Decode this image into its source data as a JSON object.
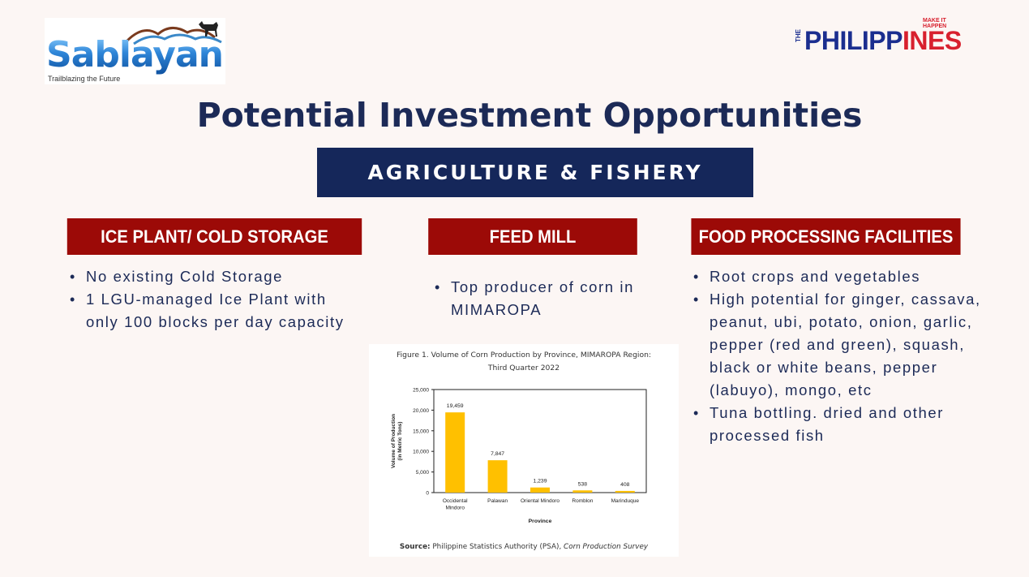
{
  "brand": {
    "logo_name": "Sablayan",
    "logo_tagline": "Trailblazing the Future",
    "ph_the": "THE",
    "ph_word_prefix": "PHILIPP",
    "ph_word_highlight": "INES",
    "ph_slogan_line1": "MAKE IT",
    "ph_slogan_line2": "HAPPEN",
    "colors": {
      "navy": "#15275a",
      "red": "#9c0a07",
      "ph_blue": "#1b2e8f",
      "ph_red": "#d8202e"
    }
  },
  "page": {
    "title": "Potential Investment Opportunities",
    "sector": "AGRICULTURE & FISHERY"
  },
  "columns": [
    {
      "heading": "ICE PLANT/ COLD STORAGE",
      "bullets": [
        "No existing Cold Storage",
        "1 LGU-managed Ice Plant with only 100 blocks per day capacity"
      ]
    },
    {
      "heading": "FEED MILL",
      "bullets": [
        "Top producer of corn in MIMAROPA"
      ]
    },
    {
      "heading": "FOOD PROCESSING FACILITIES",
      "bullets": [
        "Root crops and vegetables",
        "High potential for ginger, cassava, peanut, ubi, potato, onion, garlic, pepper (red and green), squash, black or white beans, pepper (labuyo), mongo, etc",
        "Tuna bottling. dried and other processed fish"
      ]
    }
  ],
  "figure": {
    "title_line1": "Figure 1. Volume of Corn Production by Province, MIMAROPA Region:",
    "title_line2": "Third Quarter 2022",
    "source_label": "Source:",
    "source_text": "Philippine Statistics Authority (PSA),",
    "source_survey": "Corn Production Survey"
  },
  "chart_data": {
    "type": "bar",
    "categories": [
      "Occidental Mindoro",
      "Palawan",
      "Oriental Mindoro",
      "Romblon",
      "Marinduque"
    ],
    "values": [
      19459,
      7847,
      1239,
      538,
      408
    ],
    "value_labels": [
      "19,459",
      "7,847",
      "1,239",
      "538",
      "408"
    ],
    "title": "",
    "xlabel": "Province",
    "ylabel": "Volume of Production (in Metric Tons)",
    "ylim": [
      0,
      25000
    ],
    "yticks": [
      "0",
      "5,000",
      "10,000",
      "15,000",
      "20,000",
      "25,000"
    ],
    "ytick_values": [
      0,
      5000,
      10000,
      15000,
      20000,
      25000
    ],
    "bar_color": "#ffc000",
    "grid": false,
    "legend": "none"
  }
}
